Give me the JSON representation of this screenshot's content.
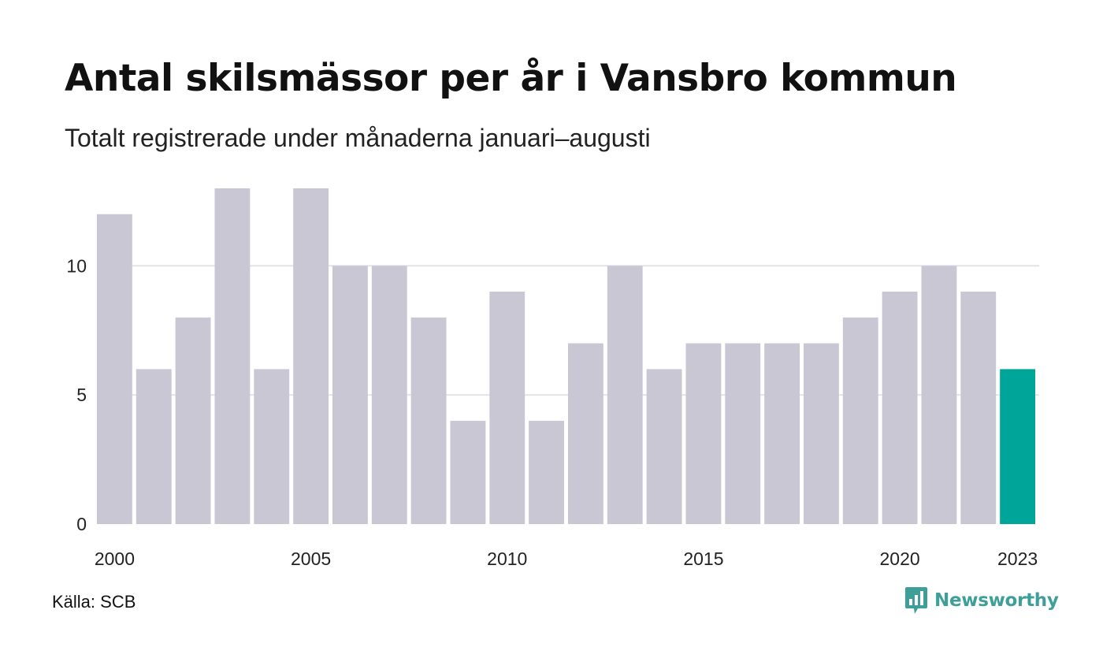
{
  "header": {
    "title": "Antal skilsmässor per år i Vansbro kommun",
    "subtitle": "Totalt registrerade under månaderna januari–augusti"
  },
  "footer": {
    "source": "Källa: SCB",
    "brand": "Newsworthy"
  },
  "colors": {
    "bar": "#c8c7d3",
    "highlight": "#00a59a",
    "grid": "#e4e4e8",
    "brand": "#3e9e98"
  },
  "icons": {
    "brand": "chart-speech-bubble-icon"
  },
  "chart_data": {
    "type": "bar",
    "title": "Antal skilsmässor per år i Vansbro kommun",
    "subtitle": "Totalt registrerade under månaderna januari–augusti",
    "xlabel": "",
    "ylabel": "",
    "categories": [
      2000,
      2001,
      2002,
      2003,
      2004,
      2005,
      2006,
      2007,
      2008,
      2009,
      2010,
      2011,
      2012,
      2013,
      2014,
      2015,
      2016,
      2017,
      2018,
      2019,
      2020,
      2021,
      2022,
      2023
    ],
    "values": [
      12,
      6,
      8,
      13,
      6,
      13,
      10,
      10,
      8,
      4,
      9,
      4,
      7,
      10,
      6,
      7,
      7,
      7,
      7,
      8,
      9,
      10,
      9,
      6
    ],
    "highlight_category": 2023,
    "ylim": [
      0,
      13
    ],
    "y_ticks": [
      0,
      5,
      10
    ],
    "x_tick_labels": [
      "2000",
      "2005",
      "2010",
      "2015",
      "2020",
      "2023"
    ],
    "grid": "horizontal",
    "legend": "none"
  }
}
